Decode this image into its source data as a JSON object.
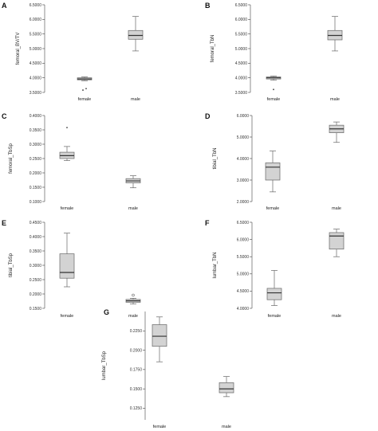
{
  "chart_data": [
    {
      "type": "box",
      "panel": "A",
      "ylabel": "femoral_BV/TV",
      "ylim": [
        3.5,
        6.5
      ],
      "yticks": [
        "3.5000",
        "4.0000",
        "4.5000",
        "5.0000",
        "5.5000",
        "6.0000",
        "6.5000"
      ],
      "categories": [
        "female",
        "male"
      ],
      "boxes": [
        {
          "min": 3.9,
          "q1": 3.93,
          "median": 3.96,
          "q3": 4.0,
          "max": 4.03,
          "outliers": [
            3.58,
            3.63
          ],
          "outlier_style": "star"
        },
        {
          "min": 4.92,
          "q1": 5.32,
          "median": 5.45,
          "q3": 5.62,
          "max": 6.1,
          "outliers": []
        }
      ]
    },
    {
      "type": "box",
      "panel": "B",
      "ylabel": "femoral_TbN",
      "ylim": [
        3.5,
        6.5
      ],
      "yticks": [
        "3.5000",
        "4.0000",
        "4.5000",
        "5.0000",
        "5.5000",
        "6.0000",
        "6.5000"
      ],
      "categories": [
        "female",
        "male"
      ],
      "boxes": [
        {
          "min": 3.92,
          "q1": 3.96,
          "median": 4.0,
          "q3": 4.03,
          "max": 4.06,
          "outliers": [
            3.6
          ],
          "outlier_style": "star"
        },
        {
          "min": 4.92,
          "q1": 5.3,
          "median": 5.45,
          "q3": 5.62,
          "max": 6.1,
          "outliers": []
        }
      ]
    },
    {
      "type": "box",
      "panel": "C",
      "ylabel": "femoral_TbSp",
      "ylim": [
        0.1,
        0.4
      ],
      "yticks": [
        "0.1000",
        "0.1500",
        "0.2000",
        "0.2500",
        "0.3000",
        "0.3500",
        "0.4000"
      ],
      "categories": [
        "female",
        "male"
      ],
      "boxes": [
        {
          "min": 0.243,
          "q1": 0.25,
          "median": 0.26,
          "q3": 0.272,
          "max": 0.292,
          "outliers": [
            0.358
          ],
          "outlier_style": "star"
        },
        {
          "min": 0.148,
          "q1": 0.165,
          "median": 0.172,
          "q3": 0.18,
          "max": 0.19,
          "outliers": []
        }
      ]
    },
    {
      "type": "box",
      "panel": "D",
      "ylabel": "tibial_TbN",
      "ylim": [
        2.0,
        6.0
      ],
      "yticks": [
        "2.0000",
        "3.0000",
        "4.0000",
        "5.0000",
        "6.0000"
      ],
      "categories": [
        "female",
        "male"
      ],
      "boxes": [
        {
          "min": 2.45,
          "q1": 3.0,
          "median": 3.6,
          "q3": 3.8,
          "max": 4.35,
          "outliers": []
        },
        {
          "min": 4.75,
          "q1": 5.2,
          "median": 5.38,
          "q3": 5.55,
          "max": 5.7,
          "outliers": []
        }
      ]
    },
    {
      "type": "box",
      "panel": "E",
      "ylabel": "tibial_TbSp",
      "ylim": [
        0.15,
        0.45
      ],
      "yticks": [
        "0.1500",
        "0.2000",
        "0.2500",
        "0.3000",
        "0.3500",
        "0.4000",
        "0.4500"
      ],
      "categories": [
        "female",
        "male"
      ],
      "boxes": [
        {
          "min": 0.225,
          "q1": 0.255,
          "median": 0.275,
          "q3": 0.34,
          "max": 0.412,
          "outliers": []
        },
        {
          "min": 0.165,
          "q1": 0.171,
          "median": 0.176,
          "q3": 0.181,
          "max": 0.185,
          "outliers": [
            0.196
          ],
          "outlier_style": "circle"
        }
      ]
    },
    {
      "type": "box",
      "panel": "F",
      "ylabel": "lumbar_TbN",
      "ylim": [
        4.0,
        6.5
      ],
      "yticks": [
        "4.0000",
        "4.5000",
        "5.0000",
        "5.5000",
        "6.0000",
        "6.5000"
      ],
      "categories": [
        "female",
        "male"
      ],
      "boxes": [
        {
          "min": 4.08,
          "q1": 4.25,
          "median": 4.45,
          "q3": 4.58,
          "max": 5.1,
          "outliers": []
        },
        {
          "min": 5.5,
          "q1": 5.72,
          "median": 6.1,
          "q3": 6.2,
          "max": 6.3,
          "outliers": []
        }
      ]
    },
    {
      "type": "box",
      "panel": "G",
      "ylabel": "lumbar_TbSp",
      "ylim": [
        0.11,
        0.25
      ],
      "yticks": [
        "0.1250",
        "0.1500",
        "0.1750",
        "0.2000",
        "0.2250"
      ],
      "categories": [
        "female",
        "male"
      ],
      "boxes": [
        {
          "min": 0.185,
          "q1": 0.205,
          "median": 0.218,
          "q3": 0.233,
          "max": 0.243,
          "outliers": []
        },
        {
          "min": 0.14,
          "q1": 0.145,
          "median": 0.15,
          "q3": 0.158,
          "max": 0.166,
          "outliers": []
        }
      ]
    }
  ]
}
